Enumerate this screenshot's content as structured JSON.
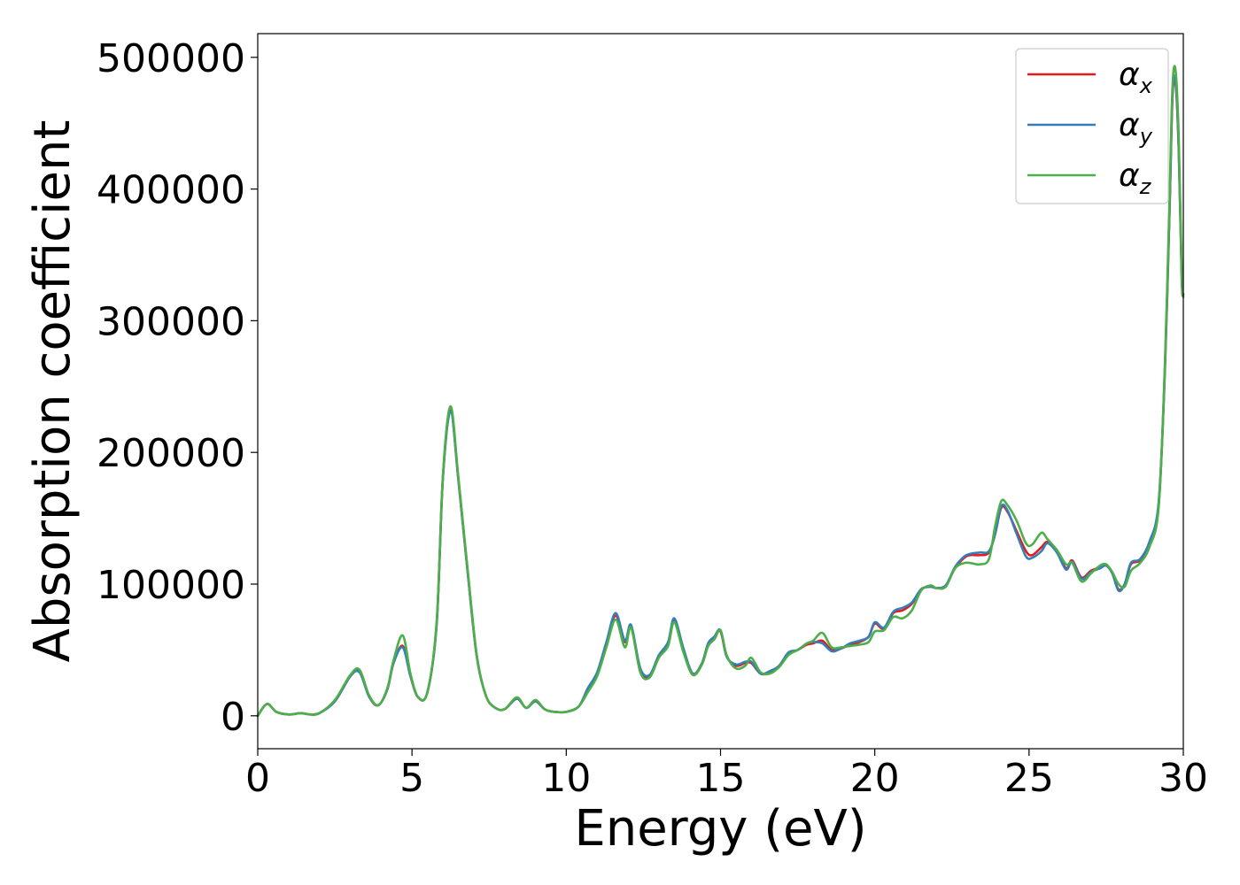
{
  "chart_data": {
    "type": "line",
    "xlabel": "Energy (eV)",
    "ylabel": "Absorption coefficient",
    "xlim": [
      0,
      30
    ],
    "ylim": [
      -25000,
      518000
    ],
    "xticks": [
      "0",
      "5",
      "10",
      "15",
      "20",
      "25",
      "30"
    ],
    "xtick_values": [
      0,
      5,
      10,
      15,
      20,
      25,
      30
    ],
    "yticks": [
      "0",
      "100000",
      "200000",
      "300000",
      "400000",
      "500000"
    ],
    "ytick_values": [
      0,
      100000,
      200000,
      300000,
      400000,
      500000
    ],
    "grid": false,
    "legend_position": "top-right",
    "series": [
      {
        "name": "α_x",
        "base": "α",
        "sub": "x",
        "color": "#e41a1c",
        "x": [
          0,
          0.3,
          0.6,
          1.0,
          1.4,
          1.7,
          2.0,
          2.5,
          3.0,
          3.3,
          3.6,
          3.9,
          4.2,
          4.4,
          4.7,
          4.95,
          5.2,
          5.5,
          5.8,
          6.0,
          6.25,
          6.5,
          6.8,
          7.1,
          7.4,
          7.7,
          8.0,
          8.4,
          8.7,
          9.0,
          9.3,
          9.6,
          10.0,
          10.4,
          10.7,
          11.0,
          11.3,
          11.6,
          11.9,
          12.1,
          12.4,
          12.7,
          13.0,
          13.3,
          13.5,
          13.8,
          14.1,
          14.4,
          14.6,
          14.8,
          15.0,
          15.2,
          15.5,
          15.8,
          16.0,
          16.3,
          16.6,
          16.9,
          17.2,
          17.5,
          17.8,
          18.0,
          18.3,
          18.6,
          18.9,
          19.2,
          19.5,
          19.8,
          20.0,
          20.3,
          20.6,
          20.9,
          21.2,
          21.5,
          21.8,
          22.0,
          22.3,
          22.6,
          22.9,
          23.1,
          23.4,
          23.7,
          23.9,
          24.1,
          24.3,
          24.6,
          24.9,
          25.1,
          25.4,
          25.6,
          25.9,
          26.2,
          26.4,
          26.7,
          27.0,
          27.3,
          27.5,
          27.7,
          27.9,
          28.1,
          28.3,
          28.6,
          28.9,
          29.2,
          29.4,
          29.55,
          29.65,
          29.75,
          29.85,
          29.95,
          30.0
        ],
        "values": [
          0,
          9000,
          3000,
          1000,
          2000,
          1000,
          2000,
          11000,
          30000,
          34000,
          15000,
          8000,
          20000,
          40000,
          53000,
          30000,
          14000,
          18000,
          70000,
          180000,
          232000,
          180000,
          110000,
          45000,
          15000,
          6000,
          5000,
          13000,
          6000,
          11000,
          5000,
          3000,
          3000,
          7000,
          20000,
          32000,
          55000,
          76000,
          56000,
          68000,
          35000,
          30000,
          45000,
          55000,
          72000,
          50000,
          32000,
          40000,
          55000,
          60000,
          64000,
          45000,
          38000,
          40000,
          40000,
          32000,
          33000,
          38000,
          47000,
          50000,
          54000,
          55000,
          57000,
          50000,
          51000,
          54000,
          56000,
          60000,
          70000,
          66000,
          78000,
          80000,
          85000,
          96000,
          98000,
          97000,
          99000,
          112000,
          120000,
          122000,
          122000,
          124000,
          138000,
          158000,
          155000,
          140000,
          125000,
          122000,
          128000,
          132000,
          125000,
          112000,
          118000,
          105000,
          110000,
          113000,
          115000,
          108000,
          96000,
          100000,
          115000,
          118000,
          130000,
          160000,
          260000,
          380000,
          470000,
          480000,
          430000,
          330000,
          320000
        ]
      },
      {
        "name": "α_y",
        "base": "α",
        "sub": "y",
        "color": "#377eb8",
        "x": [
          0,
          0.3,
          0.6,
          1.0,
          1.4,
          1.7,
          2.0,
          2.5,
          3.0,
          3.3,
          3.6,
          3.9,
          4.2,
          4.4,
          4.7,
          4.95,
          5.2,
          5.5,
          5.8,
          6.0,
          6.25,
          6.5,
          6.8,
          7.1,
          7.4,
          7.7,
          8.0,
          8.4,
          8.7,
          9.0,
          9.3,
          9.6,
          10.0,
          10.4,
          10.7,
          11.0,
          11.3,
          11.6,
          11.9,
          12.1,
          12.4,
          12.7,
          13.0,
          13.3,
          13.5,
          13.8,
          14.1,
          14.4,
          14.6,
          14.8,
          15.0,
          15.2,
          15.5,
          15.8,
          16.0,
          16.3,
          16.6,
          16.9,
          17.2,
          17.5,
          17.8,
          18.0,
          18.3,
          18.6,
          18.9,
          19.2,
          19.5,
          19.8,
          20.0,
          20.3,
          20.6,
          20.9,
          21.2,
          21.5,
          21.8,
          22.0,
          22.3,
          22.6,
          22.9,
          23.1,
          23.4,
          23.7,
          23.9,
          24.1,
          24.3,
          24.6,
          24.9,
          25.1,
          25.4,
          25.6,
          25.9,
          26.2,
          26.4,
          26.7,
          27.0,
          27.3,
          27.5,
          27.7,
          27.9,
          28.1,
          28.3,
          28.6,
          28.9,
          29.2,
          29.4,
          29.55,
          29.65,
          29.75,
          29.85,
          29.95,
          30.0
        ],
        "values": [
          0,
          9000,
          3000,
          1000,
          2000,
          1000,
          2000,
          11000,
          30000,
          33000,
          15000,
          8000,
          20000,
          40000,
          52000,
          30000,
          14000,
          18000,
          70000,
          180000,
          231000,
          180000,
          110000,
          45000,
          15000,
          6000,
          5000,
          13000,
          6000,
          11000,
          5000,
          3000,
          3000,
          7000,
          21000,
          33000,
          56000,
          78000,
          57000,
          69000,
          36000,
          31000,
          46000,
          56000,
          74000,
          51000,
          32000,
          40000,
          55000,
          60000,
          65000,
          45000,
          39000,
          41000,
          41000,
          32000,
          34000,
          38000,
          48000,
          50000,
          55000,
          56000,
          55000,
          49000,
          51000,
          55000,
          57000,
          60000,
          71000,
          67000,
          79000,
          82000,
          86000,
          96000,
          98000,
          97000,
          99000,
          113000,
          121000,
          123000,
          124000,
          125000,
          138000,
          159000,
          156000,
          138000,
          121000,
          120000,
          125000,
          131000,
          124000,
          111000,
          117000,
          104000,
          109000,
          112000,
          114000,
          108000,
          95000,
          100000,
          116000,
          119000,
          132000,
          162000,
          262000,
          382000,
          472000,
          482000,
          432000,
          332000,
          320000
        ]
      },
      {
        "name": "α_z",
        "base": "α",
        "sub": "z",
        "color": "#4daf4a",
        "x": [
          0,
          0.3,
          0.6,
          1.0,
          1.4,
          1.7,
          2.0,
          2.5,
          3.0,
          3.3,
          3.6,
          3.9,
          4.2,
          4.4,
          4.7,
          4.95,
          5.2,
          5.5,
          5.8,
          6.0,
          6.25,
          6.5,
          6.8,
          7.1,
          7.4,
          7.7,
          8.0,
          8.4,
          8.7,
          9.0,
          9.3,
          9.6,
          10.0,
          10.4,
          10.7,
          11.0,
          11.3,
          11.6,
          11.9,
          12.1,
          12.4,
          12.7,
          13.0,
          13.3,
          13.5,
          13.8,
          14.1,
          14.4,
          14.6,
          14.8,
          15.0,
          15.2,
          15.5,
          15.8,
          16.0,
          16.3,
          16.6,
          16.9,
          17.2,
          17.5,
          17.8,
          18.0,
          18.3,
          18.6,
          18.9,
          19.2,
          19.5,
          19.8,
          20.0,
          20.3,
          20.6,
          20.9,
          21.2,
          21.5,
          21.8,
          22.0,
          22.3,
          22.6,
          22.9,
          23.1,
          23.4,
          23.7,
          23.9,
          24.1,
          24.3,
          24.6,
          24.9,
          25.1,
          25.4,
          25.6,
          25.9,
          26.2,
          26.4,
          26.7,
          27.0,
          27.3,
          27.5,
          27.7,
          27.9,
          28.1,
          28.3,
          28.6,
          28.9,
          29.2,
          29.4,
          29.55,
          29.65,
          29.75,
          29.85,
          29.95,
          30.0
        ],
        "values": [
          0,
          9000,
          3000,
          1000,
          2000,
          1000,
          2000,
          12000,
          31000,
          35000,
          16000,
          8000,
          21000,
          42000,
          61000,
          32000,
          14000,
          18000,
          72000,
          182000,
          235000,
          182000,
          112000,
          46000,
          15000,
          6000,
          5000,
          14000,
          6000,
          12000,
          5000,
          3000,
          3000,
          7000,
          18000,
          30000,
          52000,
          73000,
          52000,
          67000,
          33000,
          29000,
          44000,
          53000,
          71000,
          48000,
          31000,
          39000,
          53000,
          58000,
          65000,
          46000,
          36000,
          38000,
          44000,
          33000,
          32000,
          37000,
          46000,
          50000,
          55000,
          57000,
          63000,
          52000,
          52000,
          53000,
          54000,
          56000,
          64000,
          65000,
          75000,
          74000,
          80000,
          95000,
          99000,
          97000,
          98000,
          112000,
          116000,
          116000,
          115000,
          119000,
          144000,
          163000,
          160000,
          148000,
          131000,
          130000,
          139000,
          134000,
          126000,
          115000,
          116000,
          102000,
          108000,
          114000,
          115000,
          109000,
          100000,
          98000,
          110000,
          116000,
          128000,
          158000,
          265000,
          390000,
          478000,
          490000,
          440000,
          335000,
          318000
        ]
      }
    ]
  }
}
